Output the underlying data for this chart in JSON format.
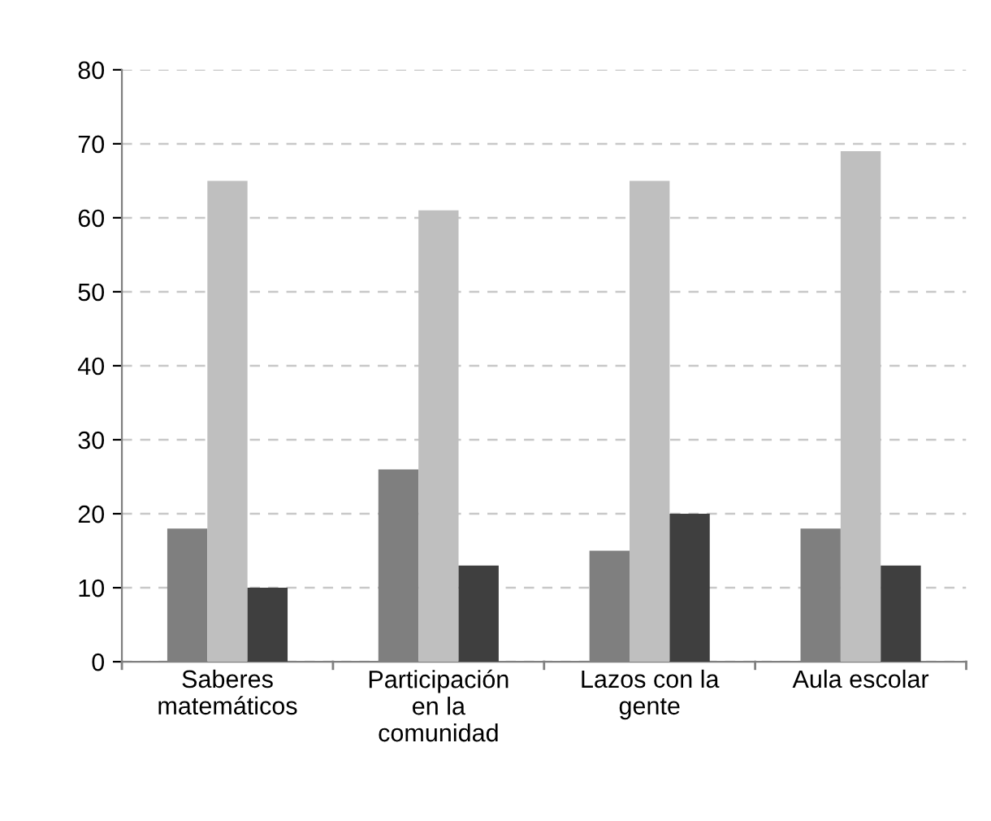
{
  "chart_data": {
    "type": "bar",
    "categories": [
      "Saberes\nmatemáticos",
      "Participación\nen la\ncomunidad",
      "Lazos con la\ngente",
      "Aula escolar"
    ],
    "series": [
      {
        "color": "#7f7f7f",
        "values": [
          18,
          26,
          15,
          18
        ]
      },
      {
        "color": "#bfbfbf",
        "values": [
          65,
          61,
          65,
          69
        ]
      },
      {
        "color": "#3f3f3f",
        "values": [
          10,
          13,
          20,
          13
        ]
      }
    ],
    "ylim": [
      0,
      80
    ],
    "yticks": [
      0,
      10,
      20,
      30,
      40,
      50,
      60,
      70,
      80
    ],
    "grid": "y",
    "legend": false
  }
}
